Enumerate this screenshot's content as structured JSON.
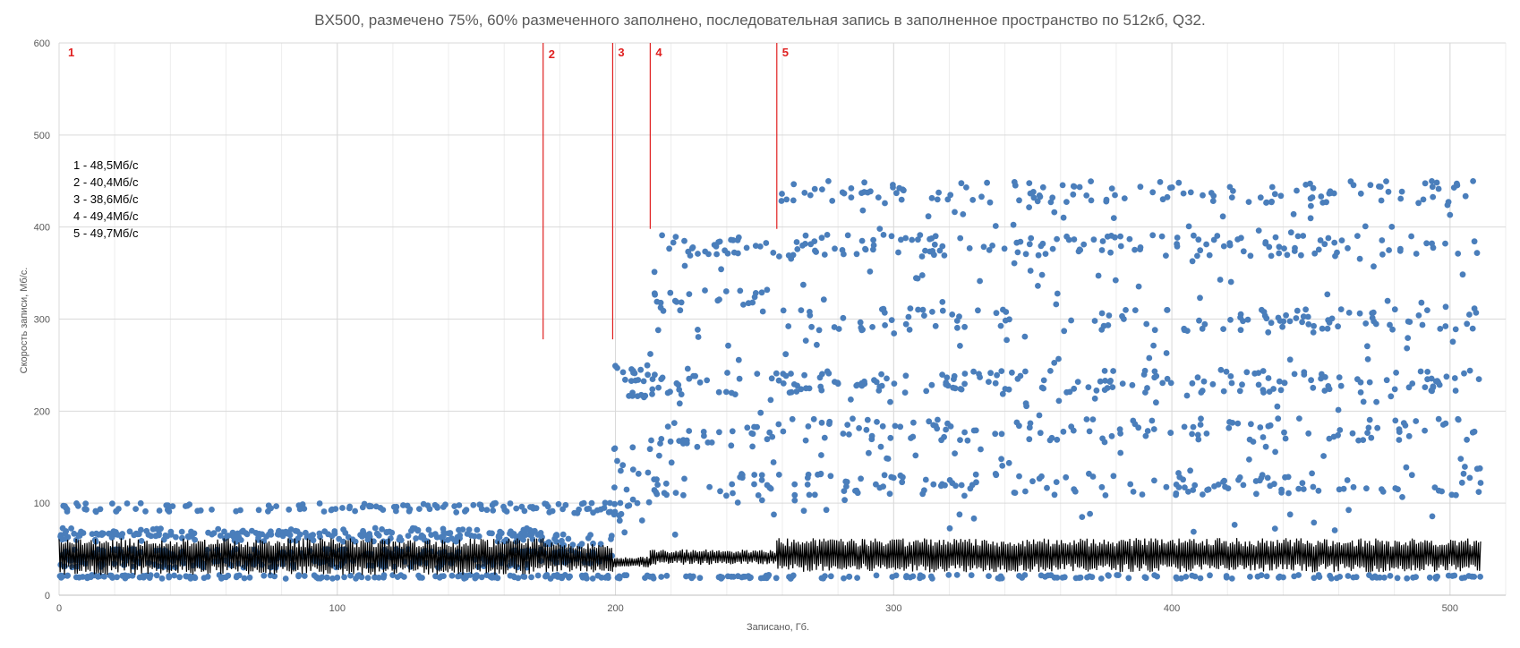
{
  "chart_data": {
    "type": "scatter",
    "title": "BX500, размечено 75%, 60% размеченного заполнено, последовательная запись в заполненное пространство по 512кб, Q32.",
    "xlabel": "Записано, Гб.",
    "ylabel": "Скорость записи, Мб/с.",
    "xlim": [
      0,
      520
    ],
    "ylim": [
      0,
      600
    ],
    "xticks": [
      0,
      100,
      200,
      300,
      400,
      500
    ],
    "yticks": [
      0,
      100,
      200,
      300,
      400,
      500,
      600
    ],
    "grid": true,
    "legend": "none",
    "colors": {
      "points": "#4a7ebb",
      "line": "#000000",
      "markers": "#e02020",
      "grid": "#d9d9d9"
    },
    "phase_markers": [
      {
        "label": "1",
        "x": 0,
        "y_from": 600,
        "y_to": 600
      },
      {
        "label": "2",
        "x": 174,
        "y_from": 278,
        "y_to": 600
      },
      {
        "label": "3",
        "x": 199,
        "y_from": 278,
        "y_to": 600
      },
      {
        "label": "4",
        "x": 212.5,
        "y_from": 398,
        "y_to": 600
      },
      {
        "label": "5",
        "x": 258,
        "y_from": 398,
        "y_to": 600
      }
    ],
    "annotations": [
      "1 - 48,5Мб/с",
      "2 - 40,4Мб/с",
      "3 - 38,6Мб/с",
      "4 - 49,4Мб/с",
      "5 - 49,7Мб/с"
    ],
    "series": [
      {
        "kind": "scatter",
        "segments": [
          {
            "x_from": 0,
            "x_to": 174,
            "levels": [
              20,
              95,
              63,
              68,
              45,
              35
            ],
            "noise": 5
          },
          {
            "x_from": 174,
            "x_to": 199,
            "levels": [
              20,
              95,
              60,
              50,
              40
            ],
            "noise": 6
          },
          {
            "x_from": 199,
            "x_to": 212.5,
            "levels": [
              20,
              232,
              100,
              150
            ],
            "noise": 20
          },
          {
            "x_from": 212.5,
            "x_to": 258,
            "levels": [
              20,
              380,
              230,
              172,
              320,
              120
            ],
            "noise": 12
          },
          {
            "x_from": 258,
            "x_to": 511,
            "levels": [
              20,
              438,
              232,
              380,
              300,
              180,
              120
            ],
            "noise": 12
          }
        ]
      },
      {
        "kind": "line",
        "segments": [
          {
            "x_from": 0,
            "x_to": 174,
            "low": 22,
            "high": 62
          },
          {
            "x_from": 174,
            "x_to": 199,
            "low": 25,
            "high": 58
          },
          {
            "x_from": 199,
            "x_to": 212.5,
            "low": 30,
            "high": 42
          },
          {
            "x_from": 212.5,
            "x_to": 258,
            "low": 33,
            "high": 50
          },
          {
            "x_from": 258,
            "x_to": 511,
            "low": 25,
            "high": 62
          }
        ]
      }
    ]
  }
}
